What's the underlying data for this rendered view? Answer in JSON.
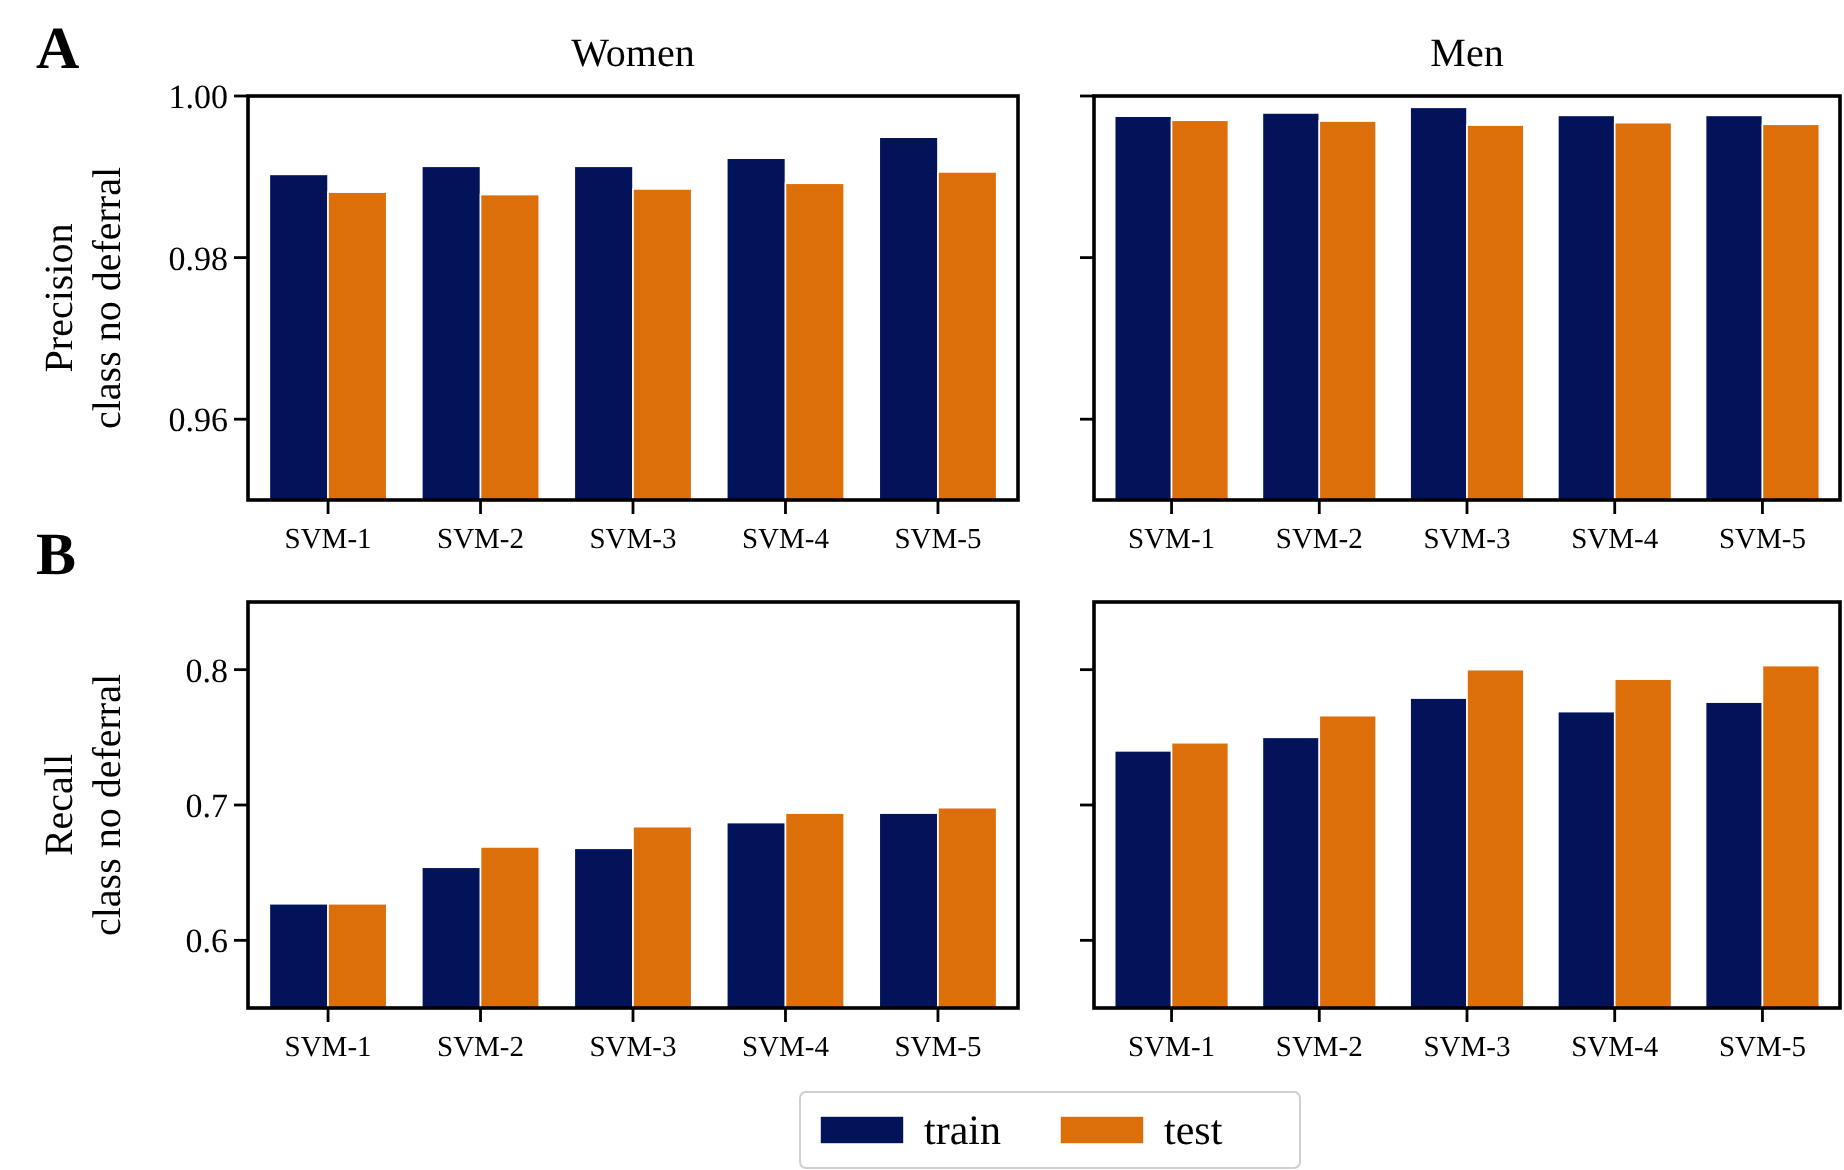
{
  "chart_data": [
    {
      "type": "bar",
      "title": "Women",
      "ylabel": "Precision\nclass no deferral",
      "annotations": [
        "A"
      ],
      "categories": [
        "SVM-1",
        "SVM-2",
        "SVM-3",
        "SVM-4",
        "SVM-5"
      ],
      "ylim": [
        0.95,
        1.0
      ],
      "yticks": [
        {
          "value": 0.96,
          "label": "0.96"
        },
        {
          "value": 0.98,
          "label": "0.98"
        },
        {
          "value": 1.0,
          "label": "1.00"
        }
      ],
      "series": [
        {
          "color": "#02135a",
          "values": [
            0.9903,
            0.9913,
            0.9913,
            0.9923,
            0.9949
          ]
        },
        {
          "color": "#dd6f0b",
          "values": [
            0.9881,
            0.9878,
            0.9885,
            0.9892,
            0.9906
          ]
        }
      ]
    },
    {
      "type": "bar",
      "title": "Men",
      "categories": [
        "SVM-1",
        "SVM-2",
        "SVM-3",
        "SVM-4",
        "SVM-5"
      ],
      "ylim": [
        0.95,
        1.0
      ],
      "yticks": [
        0.96,
        0.98,
        1.0
      ],
      "tick_labels": "x",
      "series": [
        {
          "color": "#02135a",
          "values": [
            0.9975,
            0.9979,
            0.9986,
            0.9976,
            0.9976
          ]
        },
        {
          "color": "#dd6f0b",
          "values": [
            0.997,
            0.9969,
            0.9964,
            0.9967,
            0.9965
          ]
        }
      ]
    },
    {
      "type": "bar",
      "ylabel": "Recall\nclass no deferral",
      "annotations": [
        "B"
      ],
      "categories": [
        "SVM-1",
        "SVM-2",
        "SVM-3",
        "SVM-4",
        "SVM-5"
      ],
      "ylim": [
        0.55,
        0.85
      ],
      "yticks": [
        0.6,
        0.7,
        0.8
      ],
      "legend": "bottom",
      "series": [
        {
          "name": "train",
          "color": "#02135a",
          "values": [
            0.627,
            0.654,
            0.668,
            0.687,
            0.694
          ]
        },
        {
          "name": "test",
          "color": "#dd6f0b",
          "values": [
            0.627,
            0.669,
            0.684,
            0.694,
            0.698
          ]
        }
      ]
    },
    {
      "type": "bar",
      "categories": [
        "SVM-1",
        "SVM-2",
        "SVM-3",
        "SVM-4",
        "SVM-5"
      ],
      "ylim": [
        0.55,
        0.85
      ],
      "yticks": [
        0.6,
        0.7,
        0.8
      ],
      "tick_labels": "x",
      "series": [
        {
          "color": "#02135a",
          "values": [
            0.74,
            0.75,
            0.779,
            0.769,
            0.776
          ]
        },
        {
          "color": "#dd6f0b",
          "values": [
            0.746,
            0.766,
            0.8,
            0.793,
            0.803
          ]
        }
      ]
    }
  ]
}
